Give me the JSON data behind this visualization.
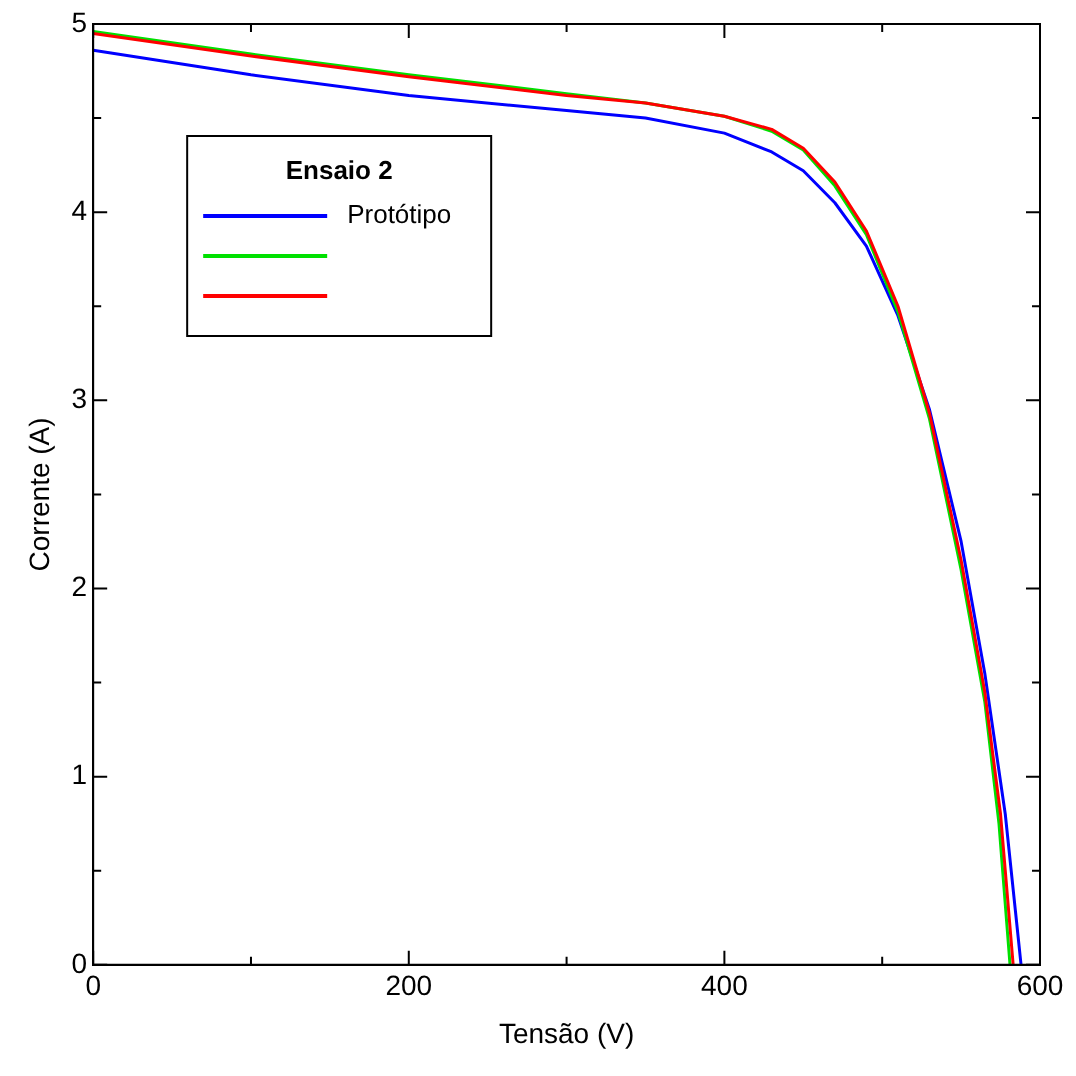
{
  "chart_data": {
    "type": "line",
    "xlabel": "Tensão (V)",
    "ylabel": "Corrente (A)",
    "legend_title": "Ensaio 2",
    "legend": "top left",
    "grid": false,
    "marker": "none",
    "line_style": "solid",
    "xlim": [
      0,
      600
    ],
    "ylim": [
      0,
      5
    ],
    "xticks": [
      0,
      {
        "value": 100,
        "label": null
      },
      200,
      {
        "value": 300,
        "label": null
      },
      400,
      {
        "value": 500,
        "label": null
      },
      600
    ],
    "yticks": [
      0,
      {
        "value": 0.5,
        "label": null
      },
      1,
      {
        "value": 1.5,
        "label": null
      },
      2,
      {
        "value": 2.5,
        "label": null
      },
      3,
      {
        "value": 3.5,
        "label": null
      },
      4,
      {
        "value": 4.5,
        "label": null
      },
      5
    ],
    "series": [
      {
        "name": "Protótipo",
        "color": "#0000ff",
        "x": [
          0,
          100,
          200,
          300,
          350,
          400,
          430,
          450,
          470,
          490,
          510,
          530,
          550,
          565,
          578,
          588
        ],
        "values": [
          4.86,
          4.73,
          4.62,
          4.54,
          4.5,
          4.42,
          4.32,
          4.22,
          4.05,
          3.82,
          3.45,
          2.95,
          2.25,
          1.55,
          0.8,
          0
        ]
      },
      {
        "color": "#00e000",
        "x": [
          0,
          100,
          200,
          300,
          350,
          400,
          430,
          450,
          470,
          490,
          510,
          530,
          550,
          565,
          574,
          581
        ],
        "values": [
          4.96,
          4.84,
          4.73,
          4.63,
          4.58,
          4.51,
          4.43,
          4.33,
          4.14,
          3.88,
          3.47,
          2.9,
          2.1,
          1.4,
          0.75,
          0
        ]
      },
      {
        "color": "#ff0000",
        "x": [
          0,
          100,
          200,
          300,
          350,
          400,
          430,
          450,
          470,
          490,
          510,
          530,
          550,
          565,
          575,
          583
        ],
        "values": [
          4.95,
          4.83,
          4.72,
          4.62,
          4.58,
          4.51,
          4.44,
          4.34,
          4.16,
          3.9,
          3.5,
          2.93,
          2.15,
          1.45,
          0.8,
          0
        ]
      }
    ]
  }
}
